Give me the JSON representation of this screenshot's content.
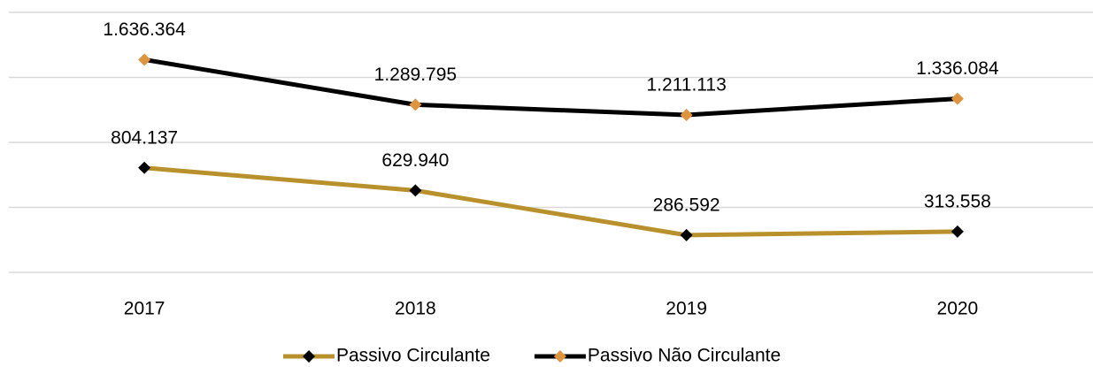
{
  "chart_data": {
    "type": "line",
    "categories": [
      "2017",
      "2018",
      "2019",
      "2020"
    ],
    "series": [
      {
        "name": "Passivo Circulante",
        "color": "#b8912c",
        "marker_color": "#000000",
        "values": [
          804137,
          629940,
          286592,
          313558
        ],
        "value_labels": [
          "804.137",
          "629.940",
          "286.592",
          "313.558"
        ]
      },
      {
        "name": "Passivo Não Circulante",
        "color": "#000000",
        "marker_color": "#e0953d",
        "values": [
          1636364,
          1289795,
          1211113,
          1336084
        ],
        "value_labels": [
          "1.636.364",
          "1.289.795",
          "1.211.113",
          "1.336.084"
        ]
      }
    ],
    "ylim": [
      0,
      2000000
    ],
    "yticks": [
      0,
      500000,
      1000000,
      1500000,
      2000000
    ],
    "grid": true,
    "legend": "bottom"
  }
}
